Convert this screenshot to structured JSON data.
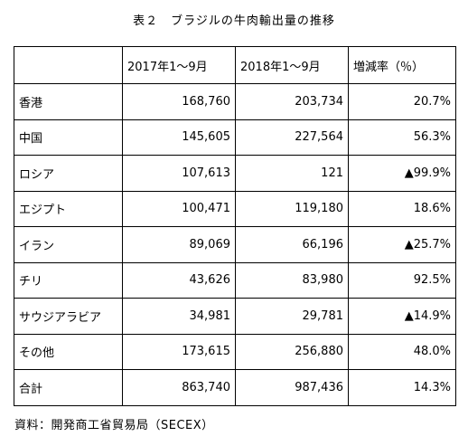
{
  "title": "表２　ブラジルの牛肉輸出量の推移",
  "table": {
    "headers": [
      "",
      "2017年1～9月",
      "2018年1～9月",
      "増減率（％）"
    ],
    "rows": [
      {
        "label": "香港",
        "v2017": "168,760",
        "v2018": "203,734",
        "change": "20.7%"
      },
      {
        "label": "中国",
        "v2017": "145,605",
        "v2018": "227,564",
        "change": "56.3%"
      },
      {
        "label": "ロシア",
        "v2017": "107,613",
        "v2018": "121",
        "change": "▲99.9%"
      },
      {
        "label": "エジプト",
        "v2017": "100,471",
        "v2018": "119,180",
        "change": "18.6%"
      },
      {
        "label": "イラン",
        "v2017": "89,069",
        "v2018": "66,196",
        "change": "▲25.7%"
      },
      {
        "label": "チリ",
        "v2017": "43,626",
        "v2018": "83,980",
        "change": "92.5%"
      },
      {
        "label": "サウジアラビア",
        "v2017": "34,981",
        "v2018": "29,781",
        "change": "▲14.9%"
      },
      {
        "label": "その他",
        "v2017": "173,615",
        "v2018": "256,880",
        "change": "48.0%"
      },
      {
        "label": "合計",
        "v2017": "863,740",
        "v2018": "987,436",
        "change": "14.3%"
      }
    ]
  },
  "footer": "資料：開発商工省貿易局（SECEX）"
}
